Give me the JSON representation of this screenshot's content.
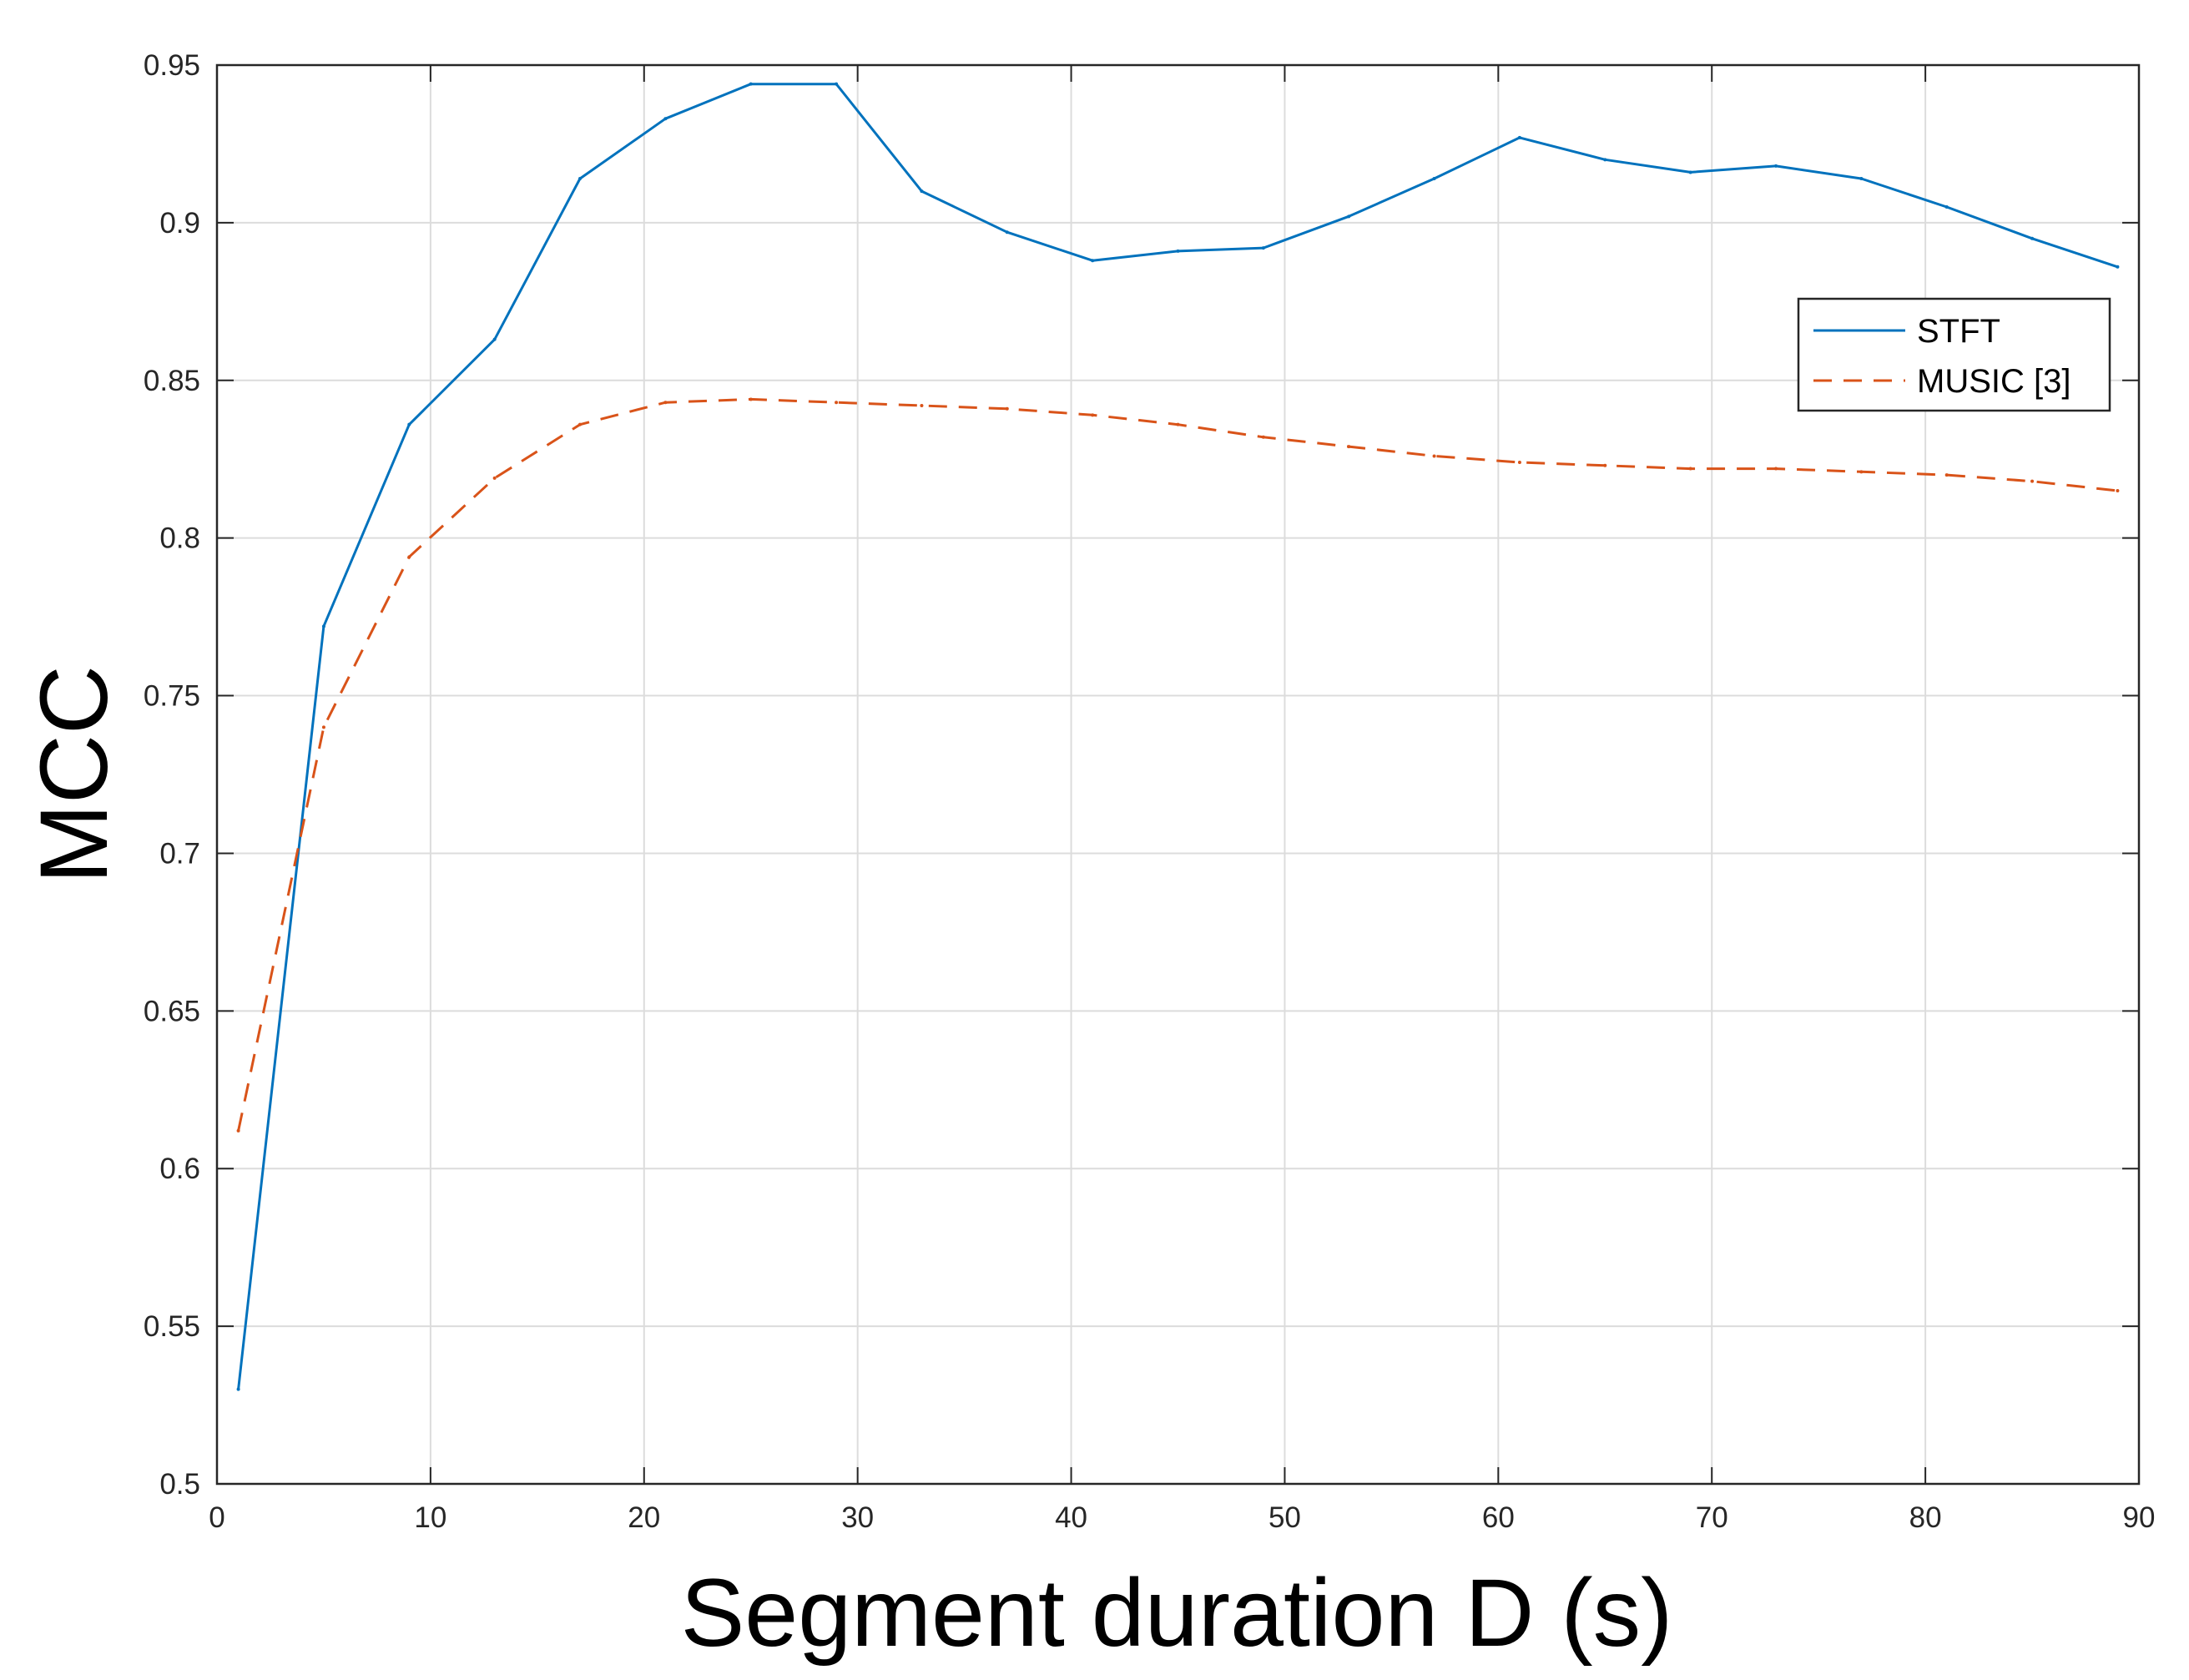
{
  "chart_data": {
    "type": "line",
    "title": "",
    "xlabel": "Segment duration D (s)",
    "ylabel": "MCC",
    "xlim": [
      0,
      90
    ],
    "ylim": [
      0.5,
      0.95
    ],
    "xticks": [
      0,
      10,
      20,
      30,
      40,
      50,
      60,
      70,
      80,
      90
    ],
    "xtick_labels": [
      "0",
      "10",
      "20",
      "30",
      "40",
      "50",
      "60",
      "70",
      "80",
      "90"
    ],
    "yticks": [
      0.5,
      0.55,
      0.6,
      0.65,
      0.7,
      0.75,
      0.8,
      0.85,
      0.9,
      0.95
    ],
    "ytick_labels": [
      "0.5",
      "0.55",
      "0.6",
      "0.65",
      "0.7",
      "0.75",
      "0.8",
      "0.85",
      "0.9",
      "0.95"
    ],
    "grid": true,
    "legend_position": "upper-right",
    "x": [
      1,
      5,
      9,
      13,
      17,
      21,
      25,
      29,
      33,
      37,
      41,
      45,
      49,
      53,
      57,
      61,
      65,
      69,
      73,
      77,
      81,
      85,
      89
    ],
    "series": [
      {
        "name": "STFT",
        "style": "solid",
        "color": "#0072BD",
        "values": [
          0.53,
          0.772,
          0.836,
          0.863,
          0.914,
          0.933,
          0.944,
          0.944,
          0.91,
          0.897,
          0.888,
          0.891,
          0.892,
          0.902,
          0.914,
          0.927,
          0.92,
          0.916,
          0.918,
          0.914,
          0.905,
          0.895,
          0.886
        ]
      },
      {
        "name": "MUSIC [3]",
        "style": "dashed",
        "color": "#D95319",
        "values": [
          0.612,
          0.74,
          0.794,
          0.819,
          0.836,
          0.843,
          0.844,
          0.843,
          0.842,
          0.841,
          0.839,
          0.836,
          0.832,
          0.829,
          0.826,
          0.824,
          0.823,
          0.822,
          0.822,
          0.821,
          0.82,
          0.818,
          0.815
        ]
      }
    ]
  }
}
